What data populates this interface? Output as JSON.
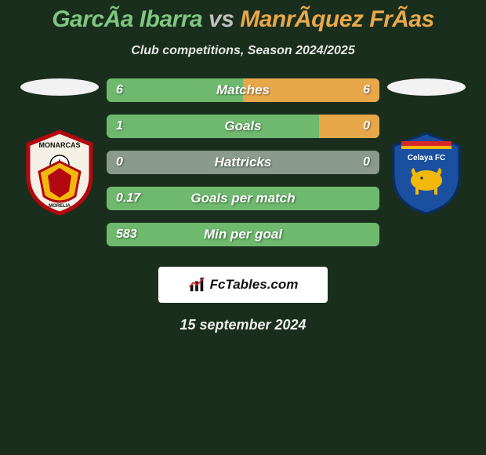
{
  "title": {
    "left_name": "GarcÃ­a Ibarra",
    "vs": "vs",
    "right_name": "ManrÃ­quez FrÃ­as",
    "left_color": "#7fc67f",
    "right_color": "#e8a84a",
    "vs_color": "#c0c0c0"
  },
  "subtitle": "Club competitions, Season 2024/2025",
  "rating_pill": {
    "left_bg": "#f2f2f2",
    "right_bg": "#f2f2f2"
  },
  "bars": [
    {
      "label": "Matches",
      "left": "6",
      "right": "6",
      "left_pct": 50,
      "right_pct": 50,
      "neutral": false
    },
    {
      "label": "Goals",
      "left": "1",
      "right": "0",
      "left_pct": 78,
      "right_pct": 22,
      "neutral": false
    },
    {
      "label": "Hattricks",
      "left": "0",
      "right": "0",
      "left_pct": 0,
      "right_pct": 0,
      "neutral": true
    },
    {
      "label": "Goals per match",
      "left": "0.17",
      "right": "",
      "left_pct": 100,
      "right_pct": 0,
      "neutral": false
    },
    {
      "label": "Min per goal",
      "left": "583",
      "right": "",
      "left_pct": 100,
      "right_pct": 0,
      "neutral": false
    }
  ],
  "bar_colors": {
    "left": "#6fb96f",
    "right": "#e8a84a",
    "neutral": "#8a9a8c"
  },
  "badge": {
    "text": "FcTables.com"
  },
  "date": "15 september 2024",
  "crests": {
    "left": {
      "name": "Monarcas Morelia"
    },
    "right": {
      "name": "Celaya FC"
    }
  }
}
